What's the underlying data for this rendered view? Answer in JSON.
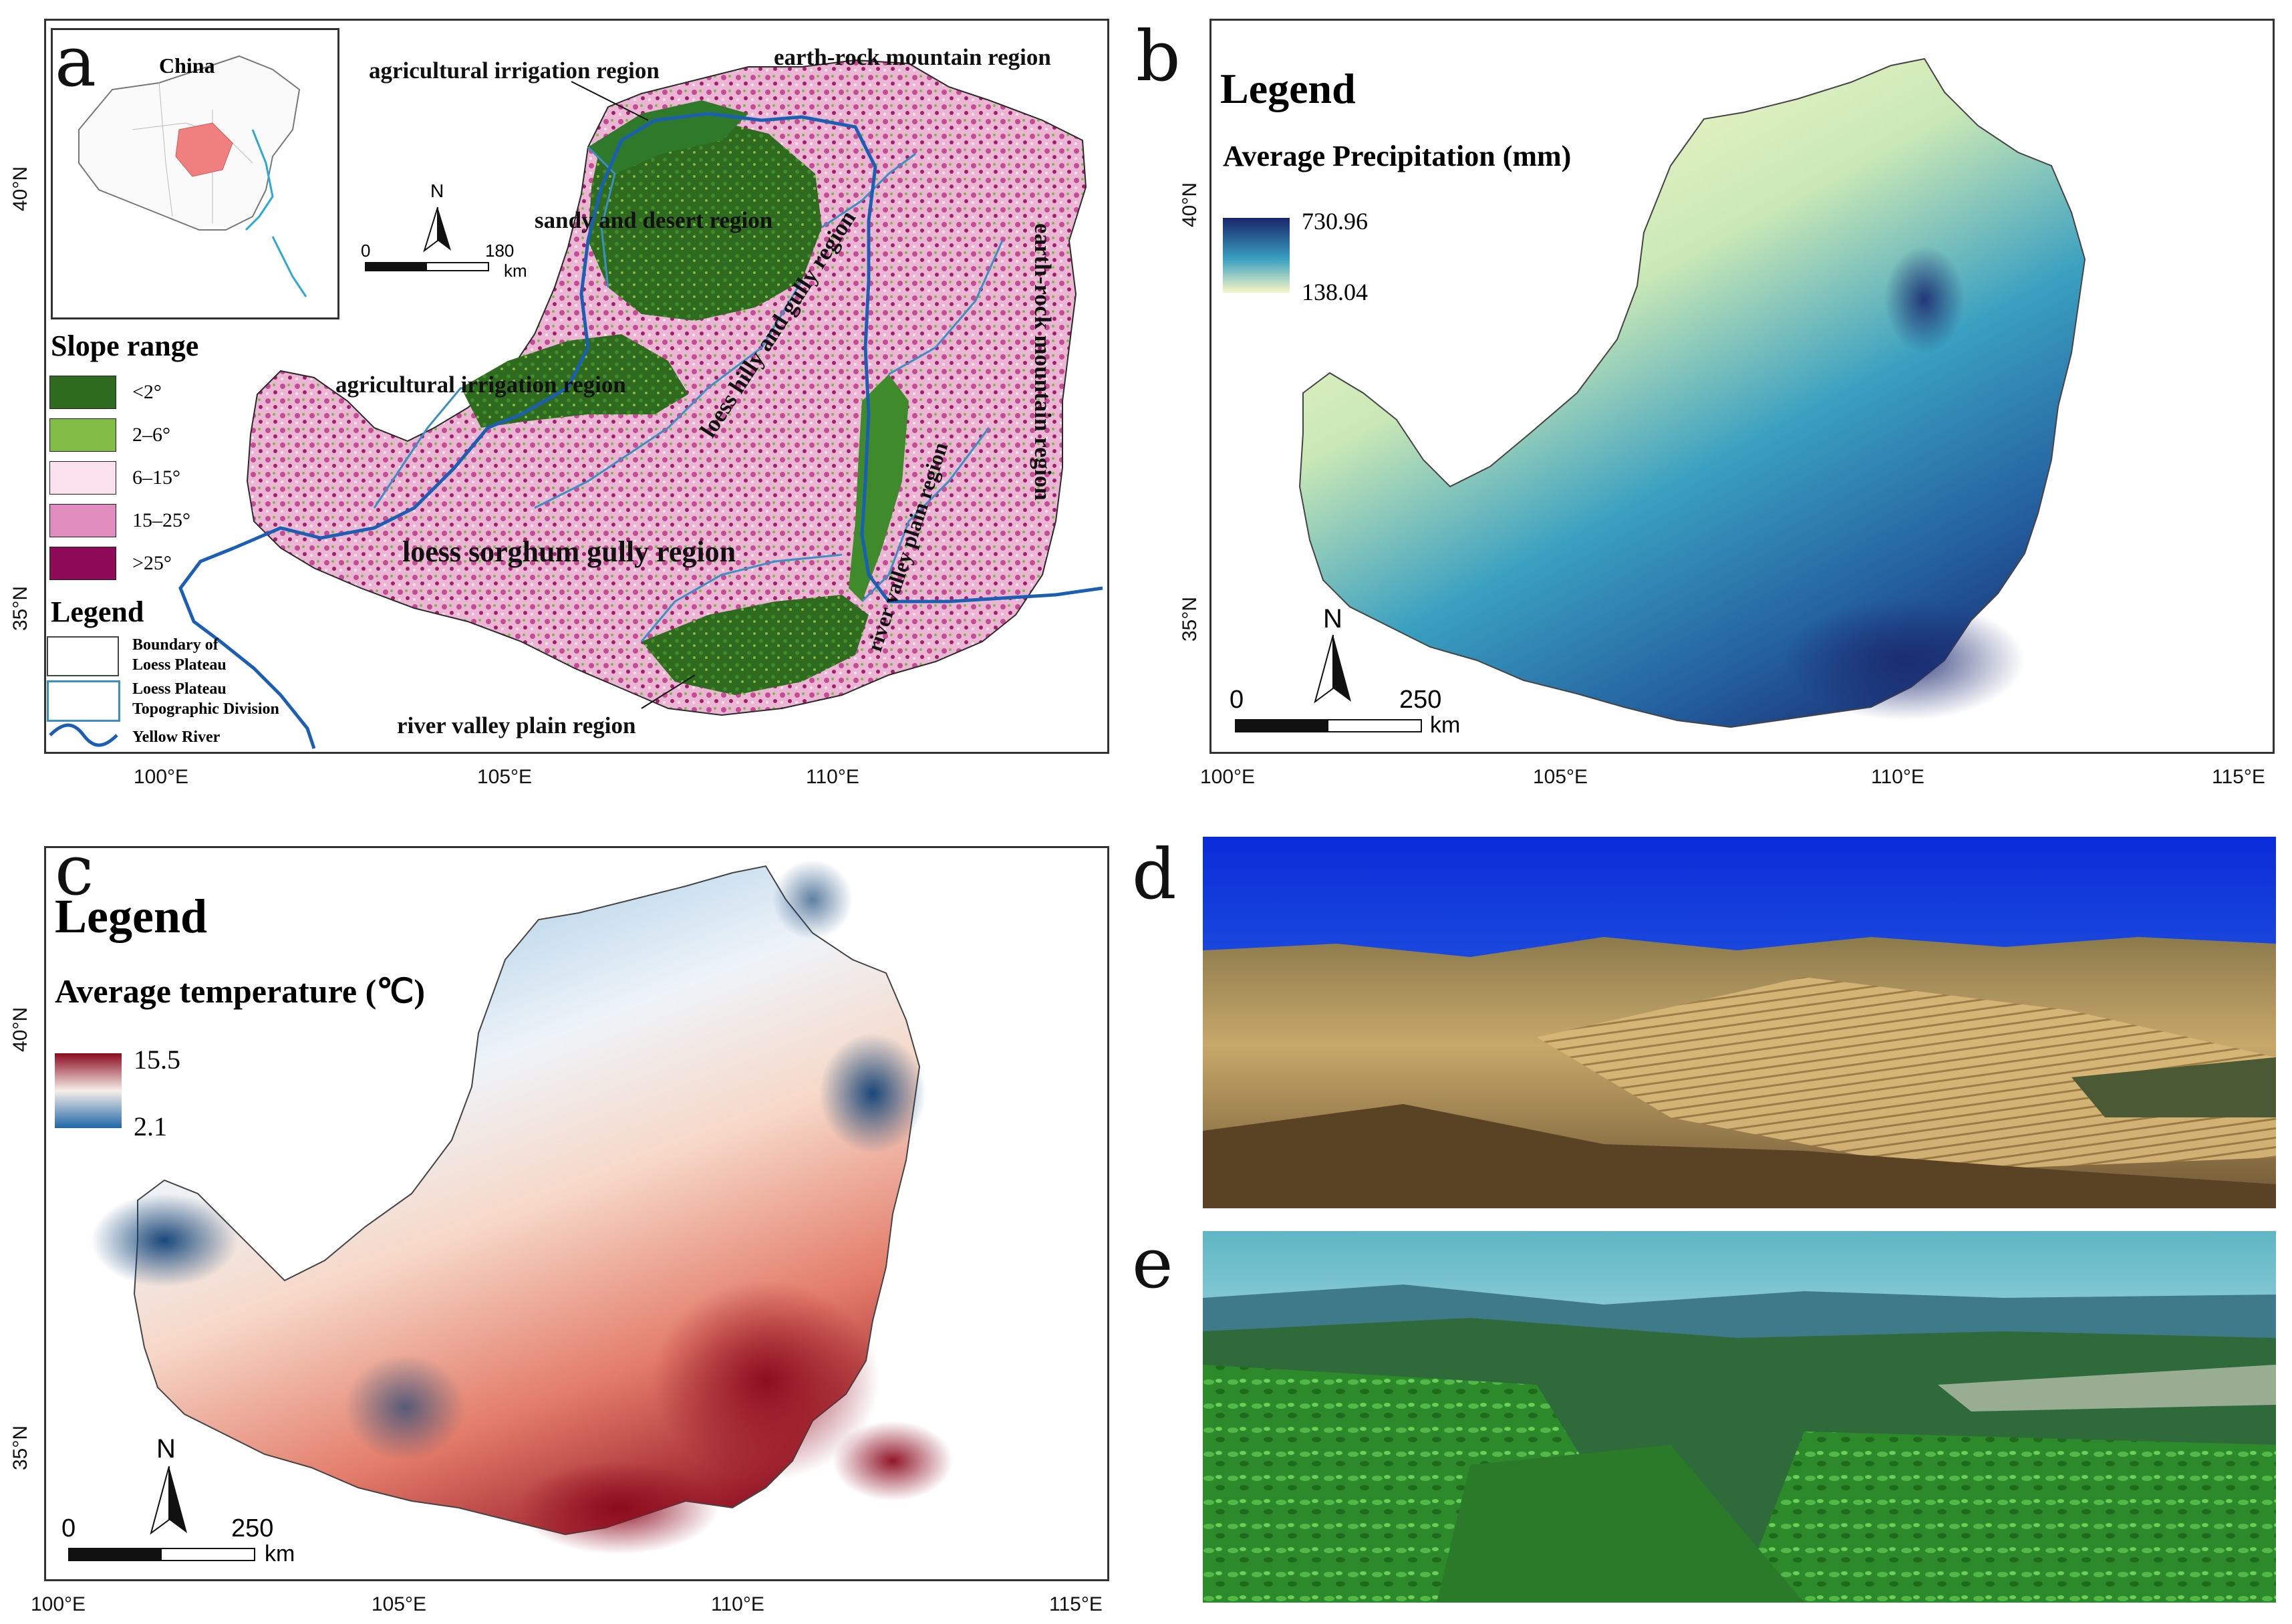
{
  "panels": {
    "a": {
      "letter": "a",
      "inset_label": "China",
      "region_labels": {
        "agri_irrigation_top": "agricultural irrigation region",
        "earth_rock_top": "earth-rock mountain region",
        "sandy_desert": "sandy and desert region",
        "loess_hilly": "loess hilly and gully region",
        "earth_rock_right": "earth-rock mountain region",
        "agri_irrigation_mid": "agricultural irrigation region",
        "river_valley_vertical": "river valley plain region",
        "loess_sorghum": "loess sorghum gully region",
        "river_valley_bottom": "river valley plain region"
      },
      "scale_bar": {
        "start": "0",
        "end": "180",
        "unit": "km"
      },
      "north": "N",
      "slope_title": "Slope range",
      "slope_classes": [
        {
          "label": "<2°",
          "color": "#2e6b1f"
        },
        {
          "label": "2–6°",
          "color": "#82bd45"
        },
        {
          "label": "6–15°",
          "color": "#fbe1ee"
        },
        {
          "label": "15–25°",
          "color": "#e08cbe"
        },
        {
          "label": ">25°",
          "color": "#8e0a57"
        }
      ],
      "legend_title": "Legend",
      "legend_items": [
        {
          "label_line1": "Boundary of",
          "label_line2": "Loess Plateau"
        },
        {
          "label_line1": "Loess Plateau",
          "label_line2": "Topographic Division"
        },
        {
          "label_line1": "Yellow River",
          "label_line2": ""
        }
      ],
      "lat_ticks": [
        "40°N",
        "35°N"
      ],
      "lon_ticks": [
        "100°E",
        "105°E",
        "110°E"
      ]
    },
    "b": {
      "letter": "b",
      "legend_title": "Legend",
      "variable_title": "Average Precipitation (mm)",
      "max": "730.96",
      "min": "138.04",
      "scale_bar": {
        "start": "0",
        "end": "250",
        "unit": "km"
      },
      "north": "N",
      "lat_ticks": [
        "40°N",
        "35°N"
      ],
      "lon_ticks": [
        "100°E",
        "105°E",
        "110°E",
        "115°E"
      ]
    },
    "c": {
      "letter": "c",
      "legend_title": "Legend",
      "variable_title": "Average temperature (℃)",
      "max": "15.5",
      "min": "2.1",
      "scale_bar": {
        "start": "0",
        "end": "250",
        "unit": "km"
      },
      "north": "N",
      "lat_ticks": [
        "40°N",
        "35°N"
      ],
      "lon_ticks": [
        "100°E",
        "105°E",
        "110°E",
        "115°E"
      ]
    },
    "d": {
      "letter": "d"
    },
    "e": {
      "letter": "e"
    }
  },
  "colors": {
    "river": "#1a5fb4",
    "division": "#3b8fc2",
    "precip_high": "#18266b",
    "precip_mid": "#3aa0c0",
    "precip_low": "#f7f7c8",
    "temp_high": "#8b0a1e",
    "temp_mid": "#f6f0ea",
    "temp_low": "#0d3f75"
  }
}
